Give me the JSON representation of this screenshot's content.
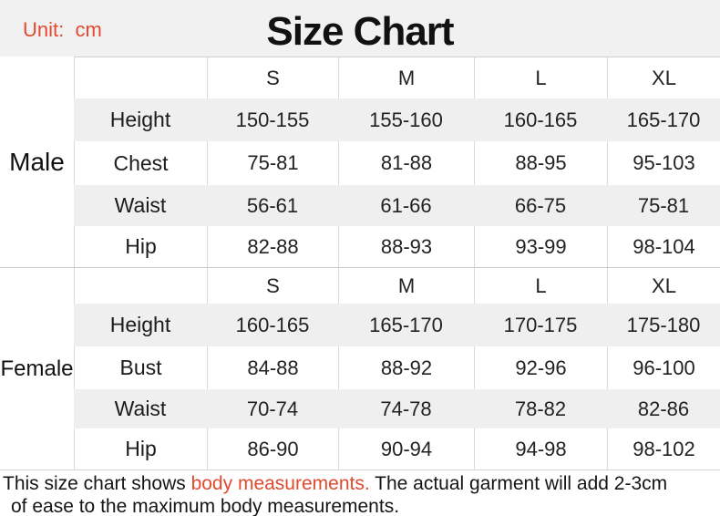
{
  "unit_label": "Unit:  cm",
  "title": "Size Chart",
  "colors": {
    "accent_red": "#e2492f",
    "row_gray": "#efefef",
    "band_gray": "#f1f1f1",
    "border_gray": "#d9d9d9"
  },
  "sizes": [
    "S",
    "M",
    "L",
    "XL"
  ],
  "sections": [
    {
      "group": "Male",
      "rows": [
        {
          "label": "Height",
          "values": [
            "150-155",
            "155-160",
            "160-165",
            "165-170"
          ]
        },
        {
          "label": "Chest",
          "values": [
            "75-81",
            "81-88",
            "88-95",
            "95-103"
          ]
        },
        {
          "label": "Waist",
          "values": [
            "56-61",
            "61-66",
            "66-75",
            "75-81"
          ]
        },
        {
          "label": "Hip",
          "values": [
            "82-88",
            "88-93",
            "93-99",
            "98-104"
          ]
        }
      ]
    },
    {
      "group": "Female",
      "rows": [
        {
          "label": "Height",
          "values": [
            "160-165",
            "165-170",
            "170-175",
            "175-180"
          ]
        },
        {
          "label": "Bust",
          "values": [
            "84-88",
            "88-92",
            "92-96",
            "96-100"
          ]
        },
        {
          "label": "Waist",
          "values": [
            "70-74",
            "74-78",
            "78-82",
            "82-86"
          ]
        },
        {
          "label": "Hip",
          "values": [
            "86-90",
            "90-94",
            "94-98",
            "98-102"
          ]
        }
      ]
    }
  ],
  "note": {
    "line1_pre": "This size chart shows ",
    "line1_red": "body measurements.",
    "line1_post": " The actual garment will add 2-3cm",
    "line2": "of ease to the maximum body measurements."
  }
}
